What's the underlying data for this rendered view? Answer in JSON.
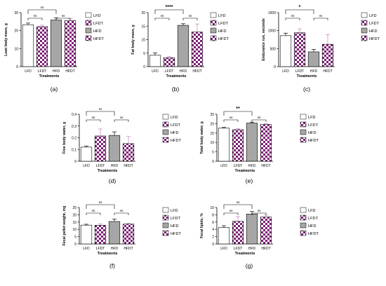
{
  "legend_entries": [
    "LFD",
    "LFDT",
    "HFD",
    "HFDT"
  ],
  "colors": {
    "LFD": "#ffffff",
    "HFD": "#a6a6a6",
    "check_purple": "#7b1f73",
    "check_light": "#ffffff",
    "errbar_purple": "#c77ac4",
    "axis": "#000000"
  },
  "panel_labels": [
    "(a)",
    "(b)",
    "(c)",
    "(d)",
    "(e)",
    "(f)",
    "(g)"
  ],
  "chart_data": [
    {
      "type": "bar",
      "title": "",
      "xlabel": "Treatments",
      "ylabel": "Lean body mass, g",
      "categories": [
        "LFD",
        "LFDT",
        "HFD",
        "HFDT"
      ],
      "values": [
        23.2,
        22.2,
        25.9,
        25.5
      ],
      "errors": [
        1.0,
        0.8,
        1.2,
        1.1
      ],
      "ylim": [
        0,
        30
      ],
      "yticks": [
        0,
        10,
        20,
        30
      ],
      "brackets": [
        {
          "from": 0,
          "to": 1,
          "label": "ns",
          "level": 1
        },
        {
          "from": 2,
          "to": 3,
          "label": "ns",
          "level": 1
        },
        {
          "from": 0,
          "to": 2,
          "label": "ns",
          "level": 2
        }
      ]
    },
    {
      "type": "bar",
      "title": "",
      "xlabel": "Treatments",
      "ylabel": "Fat body mass, g",
      "categories": [
        "LFD",
        "LFDT",
        "HFD",
        "HFDT"
      ],
      "values": [
        4.2,
        3.3,
        15.3,
        12.8
      ],
      "errors": [
        0.9,
        0.5,
        0.6,
        3.0
      ],
      "ylim": [
        0,
        20
      ],
      "yticks": [
        0,
        5,
        10,
        15,
        20
      ],
      "brackets": [
        {
          "from": 0,
          "to": 1,
          "label": "ns",
          "level": 1
        },
        {
          "from": 2,
          "to": 3,
          "label": "ns",
          "level": 1
        },
        {
          "from": 0,
          "to": 2,
          "label": "****",
          "level": 2
        }
      ]
    },
    {
      "type": "bar",
      "title": "",
      "xlabel": "Treatments",
      "ylabel": "Endurance run, seconds",
      "categories": [
        "LFD",
        "LFDT",
        "HFD",
        "HFDT"
      ],
      "values": [
        860,
        940,
        410,
        620
      ],
      "errors": [
        70,
        110,
        70,
        270
      ],
      "ylim": [
        0,
        1500
      ],
      "yticks": [
        0,
        500,
        1000,
        1500
      ],
      "brackets": [
        {
          "from": 0,
          "to": 1,
          "label": "ns",
          "level": 1
        },
        {
          "from": 2,
          "to": 3,
          "label": "ns",
          "level": 1
        },
        {
          "from": 0,
          "to": 2,
          "label": "*",
          "level": 2
        }
      ]
    },
    {
      "type": "bar",
      "title": "",
      "xlabel": "Treatments",
      "ylabel": "Free body water, g",
      "categories": [
        "LFD",
        "LFDT",
        "HFD",
        "HFDT"
      ],
      "values": [
        0.12,
        0.215,
        0.22,
        0.15
      ],
      "errors": [
        0.01,
        0.06,
        0.03,
        0.06
      ],
      "ylim": [
        0,
        0.4
      ],
      "yticks": [
        0,
        0.1,
        0.2,
        0.3,
        0.4
      ],
      "brackets": [
        {
          "from": 0,
          "to": 1,
          "label": "ns",
          "level": 1
        },
        {
          "from": 2,
          "to": 3,
          "label": "ns",
          "level": 1
        },
        {
          "from": 0,
          "to": 2,
          "label": "ns",
          "level": 2
        }
      ]
    },
    {
      "type": "bar",
      "title": "",
      "xlabel": "Treatments",
      "ylabel": "Total body water, g",
      "categories": [
        "LFD",
        "LFDT",
        "HFD",
        "HFDT"
      ],
      "values": [
        17.6,
        16.8,
        20.3,
        19.6
      ],
      "errors": [
        0.4,
        0.5,
        0.5,
        0.5
      ],
      "ylim": [
        0,
        25
      ],
      "yticks": [
        0,
        5,
        10,
        15,
        20,
        25
      ],
      "brackets": [
        {
          "from": 0,
          "to": 1,
          "label": "ns",
          "level": 1
        },
        {
          "from": 2,
          "to": 3,
          "label": "ns",
          "level": 1
        },
        {
          "from": 0,
          "to": 2,
          "label": "**",
          "level": 2
        }
      ]
    },
    {
      "type": "bar",
      "title": "",
      "xlabel": "Treatments",
      "ylabel": "Fecal pellet weight, mg",
      "categories": [
        "LFD",
        "LFDT",
        "HFD",
        "HFDT"
      ],
      "values": [
        12.9,
        12.8,
        15.4,
        13.6
      ],
      "errors": [
        0.6,
        1.0,
        1.7,
        0.5
      ],
      "ylim": [
        0,
        25
      ],
      "yticks": [
        0,
        5,
        10,
        15,
        20,
        25
      ],
      "brackets": [
        {
          "from": 0,
          "to": 1,
          "label": "ns",
          "level": 1
        },
        {
          "from": 2,
          "to": 3,
          "label": "ns",
          "level": 1
        },
        {
          "from": 0,
          "to": 2,
          "label": "ns",
          "level": 2
        }
      ]
    },
    {
      "type": "bar",
      "title": "",
      "xlabel": "Treatments",
      "ylabel": "Fecal lipids, %",
      "categories": [
        "LFD",
        "LFDT",
        "HFD",
        "HFDT"
      ],
      "values": [
        4.5,
        6.2,
        8.2,
        7.4
      ],
      "errors": [
        0.5,
        1.3,
        0.7,
        0.5
      ],
      "ylim": [
        0,
        10
      ],
      "yticks": [
        0,
        2,
        4,
        6,
        8,
        10
      ],
      "brackets": [
        {
          "from": 0,
          "to": 1,
          "label": "ns",
          "level": 1
        },
        {
          "from": 2,
          "to": 3,
          "label": "ns",
          "level": 1
        },
        {
          "from": 0,
          "to": 2,
          "label": "ns",
          "level": 2
        }
      ]
    }
  ]
}
